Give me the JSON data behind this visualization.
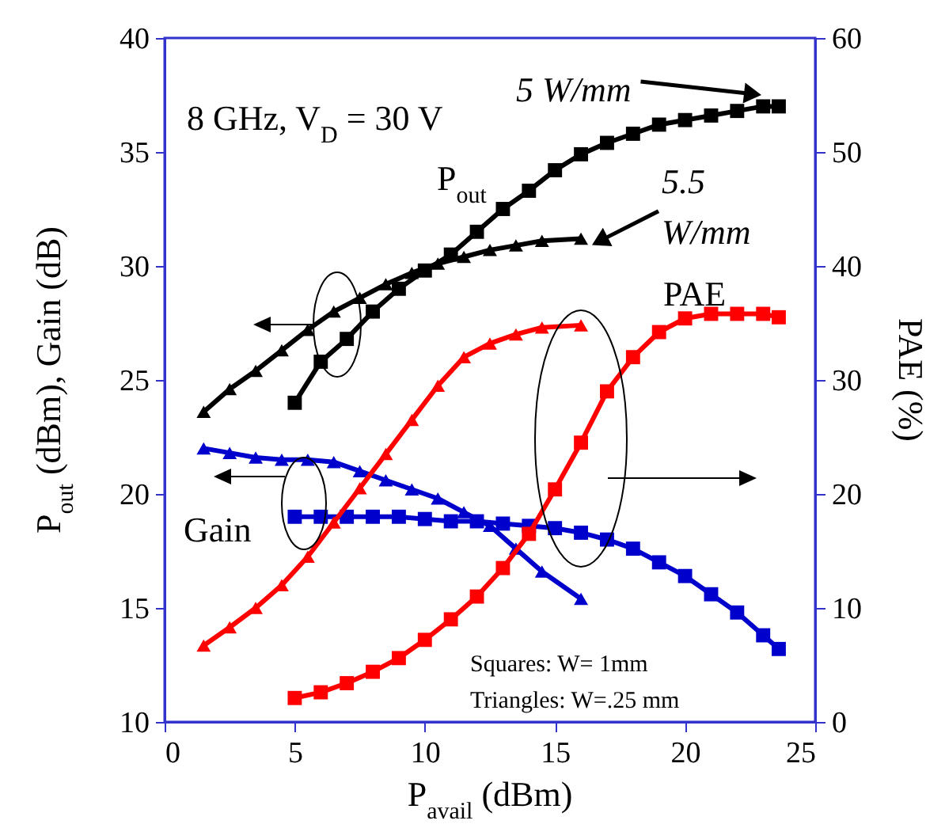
{
  "chart_data": {
    "type": "line",
    "xlabel": "P$_{avail}$ (dBm)",
    "ylabel": "P$_{out}$ (dBm), Gain (dB)",
    "y2label": "PAE (%)",
    "xlim": [
      0,
      25
    ],
    "xticks": [
      0,
      5,
      10,
      15,
      20,
      25
    ],
    "ylim": [
      10,
      40
    ],
    "yticks": [
      10,
      15,
      20,
      25,
      30,
      35,
      40
    ],
    "y2lim": [
      0,
      60
    ],
    "y2ticks": [
      0,
      10,
      20,
      30,
      40,
      50,
      60
    ],
    "grid": false,
    "line_style": "solid",
    "series": [
      {
        "color": "#000000",
        "marker": "square",
        "x": [
          5,
          6,
          7,
          8,
          9,
          10,
          11,
          12,
          13,
          14,
          15,
          16,
          17,
          18,
          19,
          20,
          21,
          22,
          23,
          23.6
        ],
        "values": [
          24,
          25.8,
          26.8,
          28,
          29,
          29.8,
          30.5,
          31.5,
          32.5,
          33.3,
          34.2,
          34.9,
          35.4,
          35.8,
          36.2,
          36.4,
          36.6,
          36.8,
          37,
          37
        ]
      },
      {
        "color": "#000000",
        "marker": "triangle",
        "x": [
          1.5,
          2.5,
          3.5,
          4.5,
          5.5,
          6.5,
          7.5,
          8.5,
          9.5,
          10.5,
          11.5,
          12.5,
          13.5,
          14.5,
          16
        ],
        "values": [
          23.6,
          24.6,
          25.4,
          26.3,
          27.2,
          28,
          28.6,
          29.2,
          29.7,
          30.1,
          30.4,
          30.7,
          30.9,
          31.1,
          31.2
        ]
      },
      {
        "color": "#0000cc",
        "marker": "square",
        "x": [
          5,
          6,
          7,
          8,
          9,
          10,
          11,
          12,
          13,
          14,
          15,
          16,
          17,
          18,
          19,
          20,
          21,
          22,
          23,
          23.6
        ],
        "values": [
          19,
          19,
          19,
          19,
          19,
          18.9,
          18.8,
          18.8,
          18.7,
          18.6,
          18.5,
          18.3,
          18,
          17.6,
          17,
          16.4,
          15.6,
          14.8,
          13.8,
          13.2
        ]
      },
      {
        "color": "#0000cc",
        "marker": "triangle",
        "x": [
          1.5,
          2.5,
          3.5,
          4.5,
          5.5,
          6.5,
          7.5,
          8.5,
          9.5,
          10.5,
          11.5,
          12.5,
          13.5,
          14.5,
          16
        ],
        "values": [
          22,
          21.8,
          21.6,
          21.5,
          21.5,
          21.4,
          21,
          20.6,
          20.2,
          19.8,
          19.2,
          18.6,
          17.6,
          16.6,
          15.4
        ]
      },
      {
        "color": "#ff0000",
        "marker": "square",
        "axis": "y2",
        "x": [
          5,
          6,
          7,
          8,
          9,
          10,
          11,
          12,
          13,
          14,
          15,
          16,
          17,
          18,
          19,
          20,
          21,
          22,
          23,
          23.6
        ],
        "values": [
          2.1,
          2.6,
          3.4,
          4.4,
          5.6,
          7.2,
          9,
          11,
          13.5,
          16.5,
          20.4,
          24.5,
          29,
          32,
          34.2,
          35.4,
          35.8,
          35.8,
          35.8,
          35.5
        ]
      },
      {
        "color": "#ff0000",
        "marker": "triangle",
        "axis": "y2",
        "x": [
          1.5,
          2.5,
          3.5,
          4.5,
          5.5,
          6.5,
          7.5,
          8.5,
          9.5,
          10.5,
          11.5,
          12.5,
          13.5,
          14.5,
          16
        ],
        "values": [
          6.7,
          8.3,
          10,
          12,
          14.5,
          17.5,
          20.5,
          23.5,
          26.5,
          29.5,
          32,
          33.2,
          34,
          34.6,
          34.8
        ]
      }
    ],
    "annotations": [
      "8 GHz, V$_{D}$ = 30 V",
      "P$_{out}$",
      "5 W/mm",
      {
        "text": "5.5 W/mm",
        "x": 16,
        "y": 31.2
      },
      "PAE",
      "Gain",
      "Squares:  W= 1mm",
      "Triangles: W=.25 mm"
    ]
  }
}
